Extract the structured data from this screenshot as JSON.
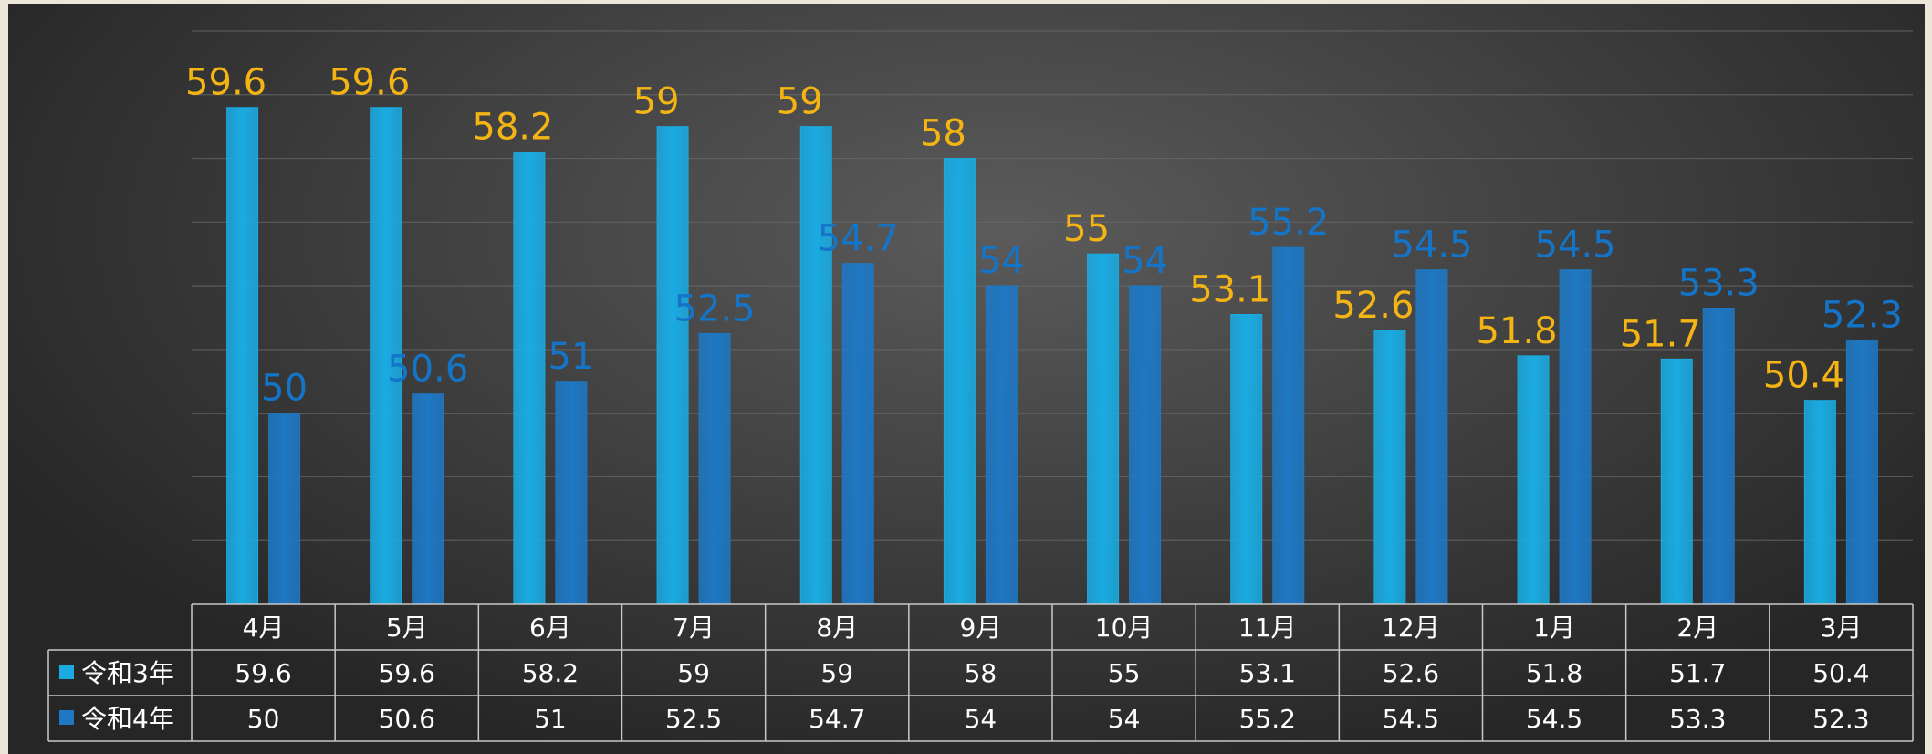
{
  "chart_data": {
    "type": "bar",
    "categories": [
      "4月",
      "5月",
      "6月",
      "7月",
      "8月",
      "9月",
      "10月",
      "11月",
      "12月",
      "1月",
      "2月",
      "3月"
    ],
    "series": [
      {
        "name": "令和3年",
        "values": [
          59.6,
          59.6,
          58.2,
          59,
          59,
          58,
          55,
          53.1,
          52.6,
          51.8,
          51.7,
          50.4
        ],
        "color": "#1aabe2",
        "label_color": "#f4b414"
      },
      {
        "name": "令和4年",
        "values": [
          50,
          50.6,
          51,
          52.5,
          54.7,
          54,
          54,
          55.2,
          54.5,
          54.5,
          53.3,
          52.3
        ],
        "color": "#1e78c4",
        "label_color": "#1474c8"
      }
    ],
    "ylim": [
      44,
      62
    ],
    "grid": true,
    "data_table": true,
    "legend": "data-table"
  }
}
